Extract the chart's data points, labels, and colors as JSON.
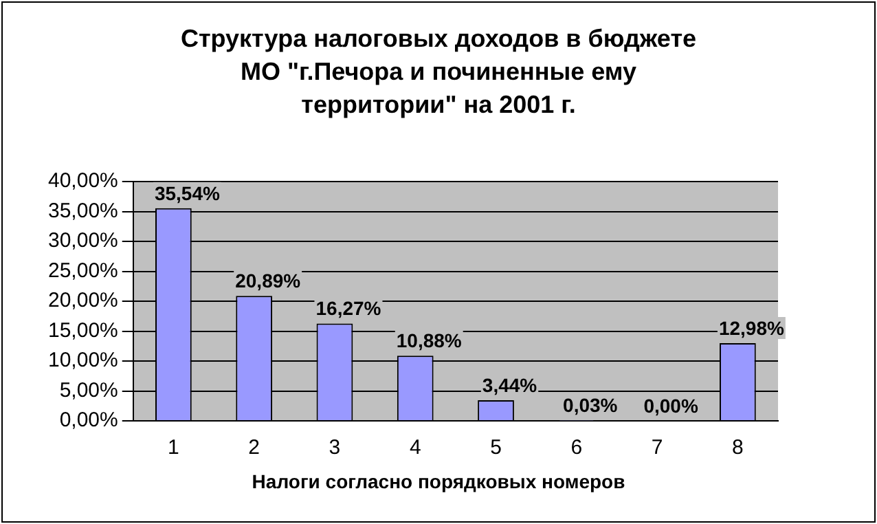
{
  "chart_data": {
    "type": "bar",
    "title": "Структура налоговых доходов в бюджете МО \"г.Печора и починенные ему территории\" на 2001 г.",
    "xlabel": "Налоги согласно порядковых номеров",
    "categories": [
      "1",
      "2",
      "3",
      "4",
      "5",
      "6",
      "7",
      "8"
    ],
    "values": [
      35.54,
      20.89,
      16.27,
      10.88,
      3.44,
      0.03,
      0,
      12.98
    ],
    "colors": [
      "#9999ff",
      "#9999ff",
      "#9999ff",
      "#9999ff",
      "#9999ff",
      "#9999ff",
      "#ff0000",
      "#9999ff"
    ],
    "value_labels": [
      "35,54%",
      "20,89%",
      "16,27%",
      "10,88%",
      "3,44%",
      "0,03%",
      "0,00%",
      "12,98%"
    ],
    "ylim": [
      0,
      40
    ],
    "yticks": [
      {
        "value": 0,
        "label": "0,00%"
      },
      {
        "value": 5,
        "label": "5,00%"
      },
      {
        "value": 10,
        "label": "10,00%"
      },
      {
        "value": 15,
        "label": "15,00%"
      },
      {
        "value": 20,
        "label": "20,00%"
      },
      {
        "value": 25,
        "label": "25,00%"
      },
      {
        "value": 30,
        "label": "30,00%"
      },
      {
        "value": 35,
        "label": "35,00%"
      },
      {
        "value": 40,
        "label": "40,00%"
      }
    ],
    "grid": "y",
    "legend": false
  }
}
